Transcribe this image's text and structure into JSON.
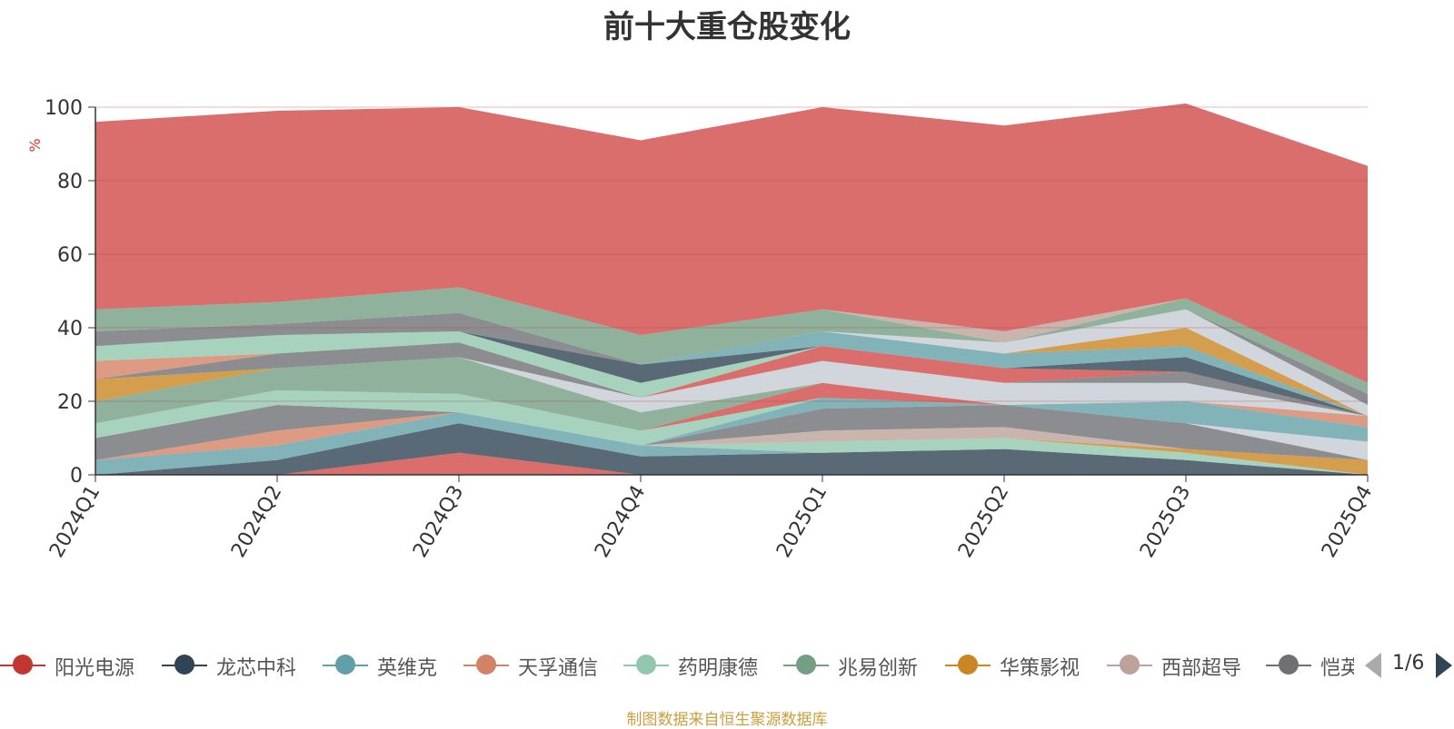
{
  "chart_data": {
    "type": "area",
    "title": "前十大重仓股变化",
    "ylabel": "%",
    "ylim": [
      0,
      100
    ],
    "yticks": [
      "0",
      "20",
      "40",
      "60",
      "80",
      "100"
    ],
    "categories": [
      "2024Q1",
      "2024Q2",
      "2024Q3",
      "2024Q4",
      "2025Q1",
      "2025Q2",
      "2025Q3",
      "2025Q4"
    ],
    "grid": true,
    "legend_placement": "bottom",
    "series": [
      {
        "name": "阳光电源",
        "color": "#d14a47",
        "values": [
          0,
          0,
          6,
          0,
          0,
          0,
          0,
          0
        ]
      },
      {
        "name": "龙芯中科",
        "color": "#2f4554",
        "values": [
          0,
          4,
          8,
          5,
          6,
          7,
          4,
          0
        ]
      },
      {
        "name": "英维克",
        "color": "#61a0a8",
        "values": [
          4,
          4,
          3,
          3,
          0,
          0,
          0,
          0
        ]
      },
      {
        "name": "天孚通信",
        "color": "#d48265",
        "values": [
          0,
          4,
          0,
          0,
          0,
          0,
          0,
          0
        ]
      },
      {
        "name": "药明康德",
        "color": "#91c7ae",
        "values": [
          0,
          0,
          0,
          0,
          3,
          3,
          2,
          0
        ]
      },
      {
        "name": "兆易创新",
        "color": "#749f83",
        "values": [
          0,
          0,
          0,
          0,
          0,
          0,
          0,
          0
        ]
      },
      {
        "name": "华策影视",
        "color": "#ca8622",
        "values": [
          0,
          0,
          0,
          0,
          0,
          0,
          1,
          4
        ]
      },
      {
        "name": "西部超导",
        "color": "#bda29a",
        "values": [
          0,
          0,
          0,
          0,
          3,
          3,
          0,
          0
        ]
      },
      {
        "name": "恺英网络",
        "color": "#6e7074",
        "values": [
          6,
          7,
          0,
          0,
          6,
          6,
          7,
          0
        ]
      },
      {
        "name": "",
        "color": "#c4ccd3",
        "values": [
          0,
          0,
          0,
          0,
          0,
          0,
          0,
          5
        ]
      },
      {
        "name": "",
        "color": "#61a0a8",
        "values": [
          0,
          0,
          0,
          0,
          3,
          0,
          6,
          4
        ]
      },
      {
        "name": "",
        "color": "#91c7ae",
        "values": [
          4,
          4,
          5,
          4,
          0,
          0,
          0,
          0
        ]
      },
      {
        "name": "",
        "color": "#d14a47",
        "values": [
          0,
          0,
          0,
          0,
          4,
          0,
          0,
          0
        ]
      },
      {
        "name": "",
        "color": "#749f83",
        "values": [
          6,
          6,
          10,
          5,
          0,
          0,
          0,
          0
        ]
      },
      {
        "name": "",
        "color": "#d48265",
        "values": [
          0,
          0,
          0,
          0,
          0,
          0,
          0,
          3
        ]
      },
      {
        "name": "",
        "color": "#c4ccd3",
        "values": [
          0,
          0,
          0,
          4,
          6,
          6,
          5,
          0
        ]
      },
      {
        "name": "",
        "color": "#ca8622",
        "values": [
          6,
          0,
          0,
          0,
          0,
          0,
          0,
          0
        ]
      },
      {
        "name": "",
        "color": "#6e7074",
        "values": [
          0,
          4,
          4,
          0,
          0,
          0,
          3,
          0
        ]
      },
      {
        "name": "",
        "color": "#d14a47",
        "values": [
          0,
          0,
          0,
          0,
          4,
          4,
          0,
          0
        ]
      },
      {
        "name": "",
        "color": "#d48265",
        "values": [
          5,
          0,
          0,
          0,
          0,
          0,
          0,
          0
        ]
      },
      {
        "name": "",
        "color": "#91c7ae",
        "values": [
          4,
          5,
          3,
          4,
          0,
          0,
          0,
          0
        ]
      },
      {
        "name": "",
        "color": "#2f4554",
        "values": [
          0,
          0,
          0,
          5,
          0,
          0,
          4,
          0
        ]
      },
      {
        "name": "",
        "color": "#61a0a8",
        "values": [
          0,
          0,
          0,
          0,
          4,
          4,
          3,
          0
        ]
      },
      {
        "name": "",
        "color": "#ca8622",
        "values": [
          0,
          0,
          0,
          0,
          0,
          0,
          5,
          0
        ]
      },
      {
        "name": "",
        "color": "#c4ccd3",
        "values": [
          0,
          0,
          0,
          0,
          0,
          3,
          5,
          3
        ]
      },
      {
        "name": "",
        "color": "#6e7074",
        "values": [
          4,
          3,
          5,
          0,
          0,
          0,
          0,
          3
        ]
      },
      {
        "name": "",
        "color": "#749f83",
        "values": [
          6,
          6,
          7,
          8,
          6,
          0,
          3,
          3
        ]
      },
      {
        "name": "",
        "color": "#bda29a",
        "values": [
          0,
          0,
          0,
          0,
          0,
          3,
          0,
          0
        ]
      },
      {
        "name": "",
        "color": "#d14a47",
        "values": [
          51,
          52,
          49,
          53,
          55,
          56,
          53,
          59
        ]
      }
    ]
  },
  "legend": {
    "items": [
      {
        "label": "阳光电源",
        "color": "#c23531"
      },
      {
        "label": "龙芯中科",
        "color": "#2f4554"
      },
      {
        "label": "英维克",
        "color": "#61a0a8"
      },
      {
        "label": "天孚通信",
        "color": "#d48265"
      },
      {
        "label": "药明康德",
        "color": "#91c7ae"
      },
      {
        "label": "兆易创新",
        "color": "#749f83"
      },
      {
        "label": "华策影视",
        "color": "#ca8622"
      },
      {
        "label": "西部超导",
        "color": "#bda29a"
      },
      {
        "label": "恺英网络",
        "color": "#6e7074"
      }
    ],
    "page_indicator": "1/6",
    "prev_icon": "triangle-left-icon",
    "next_icon": "triangle-right-icon"
  },
  "footer": {
    "source_note": "制图数据来自恒生聚源数据库"
  }
}
